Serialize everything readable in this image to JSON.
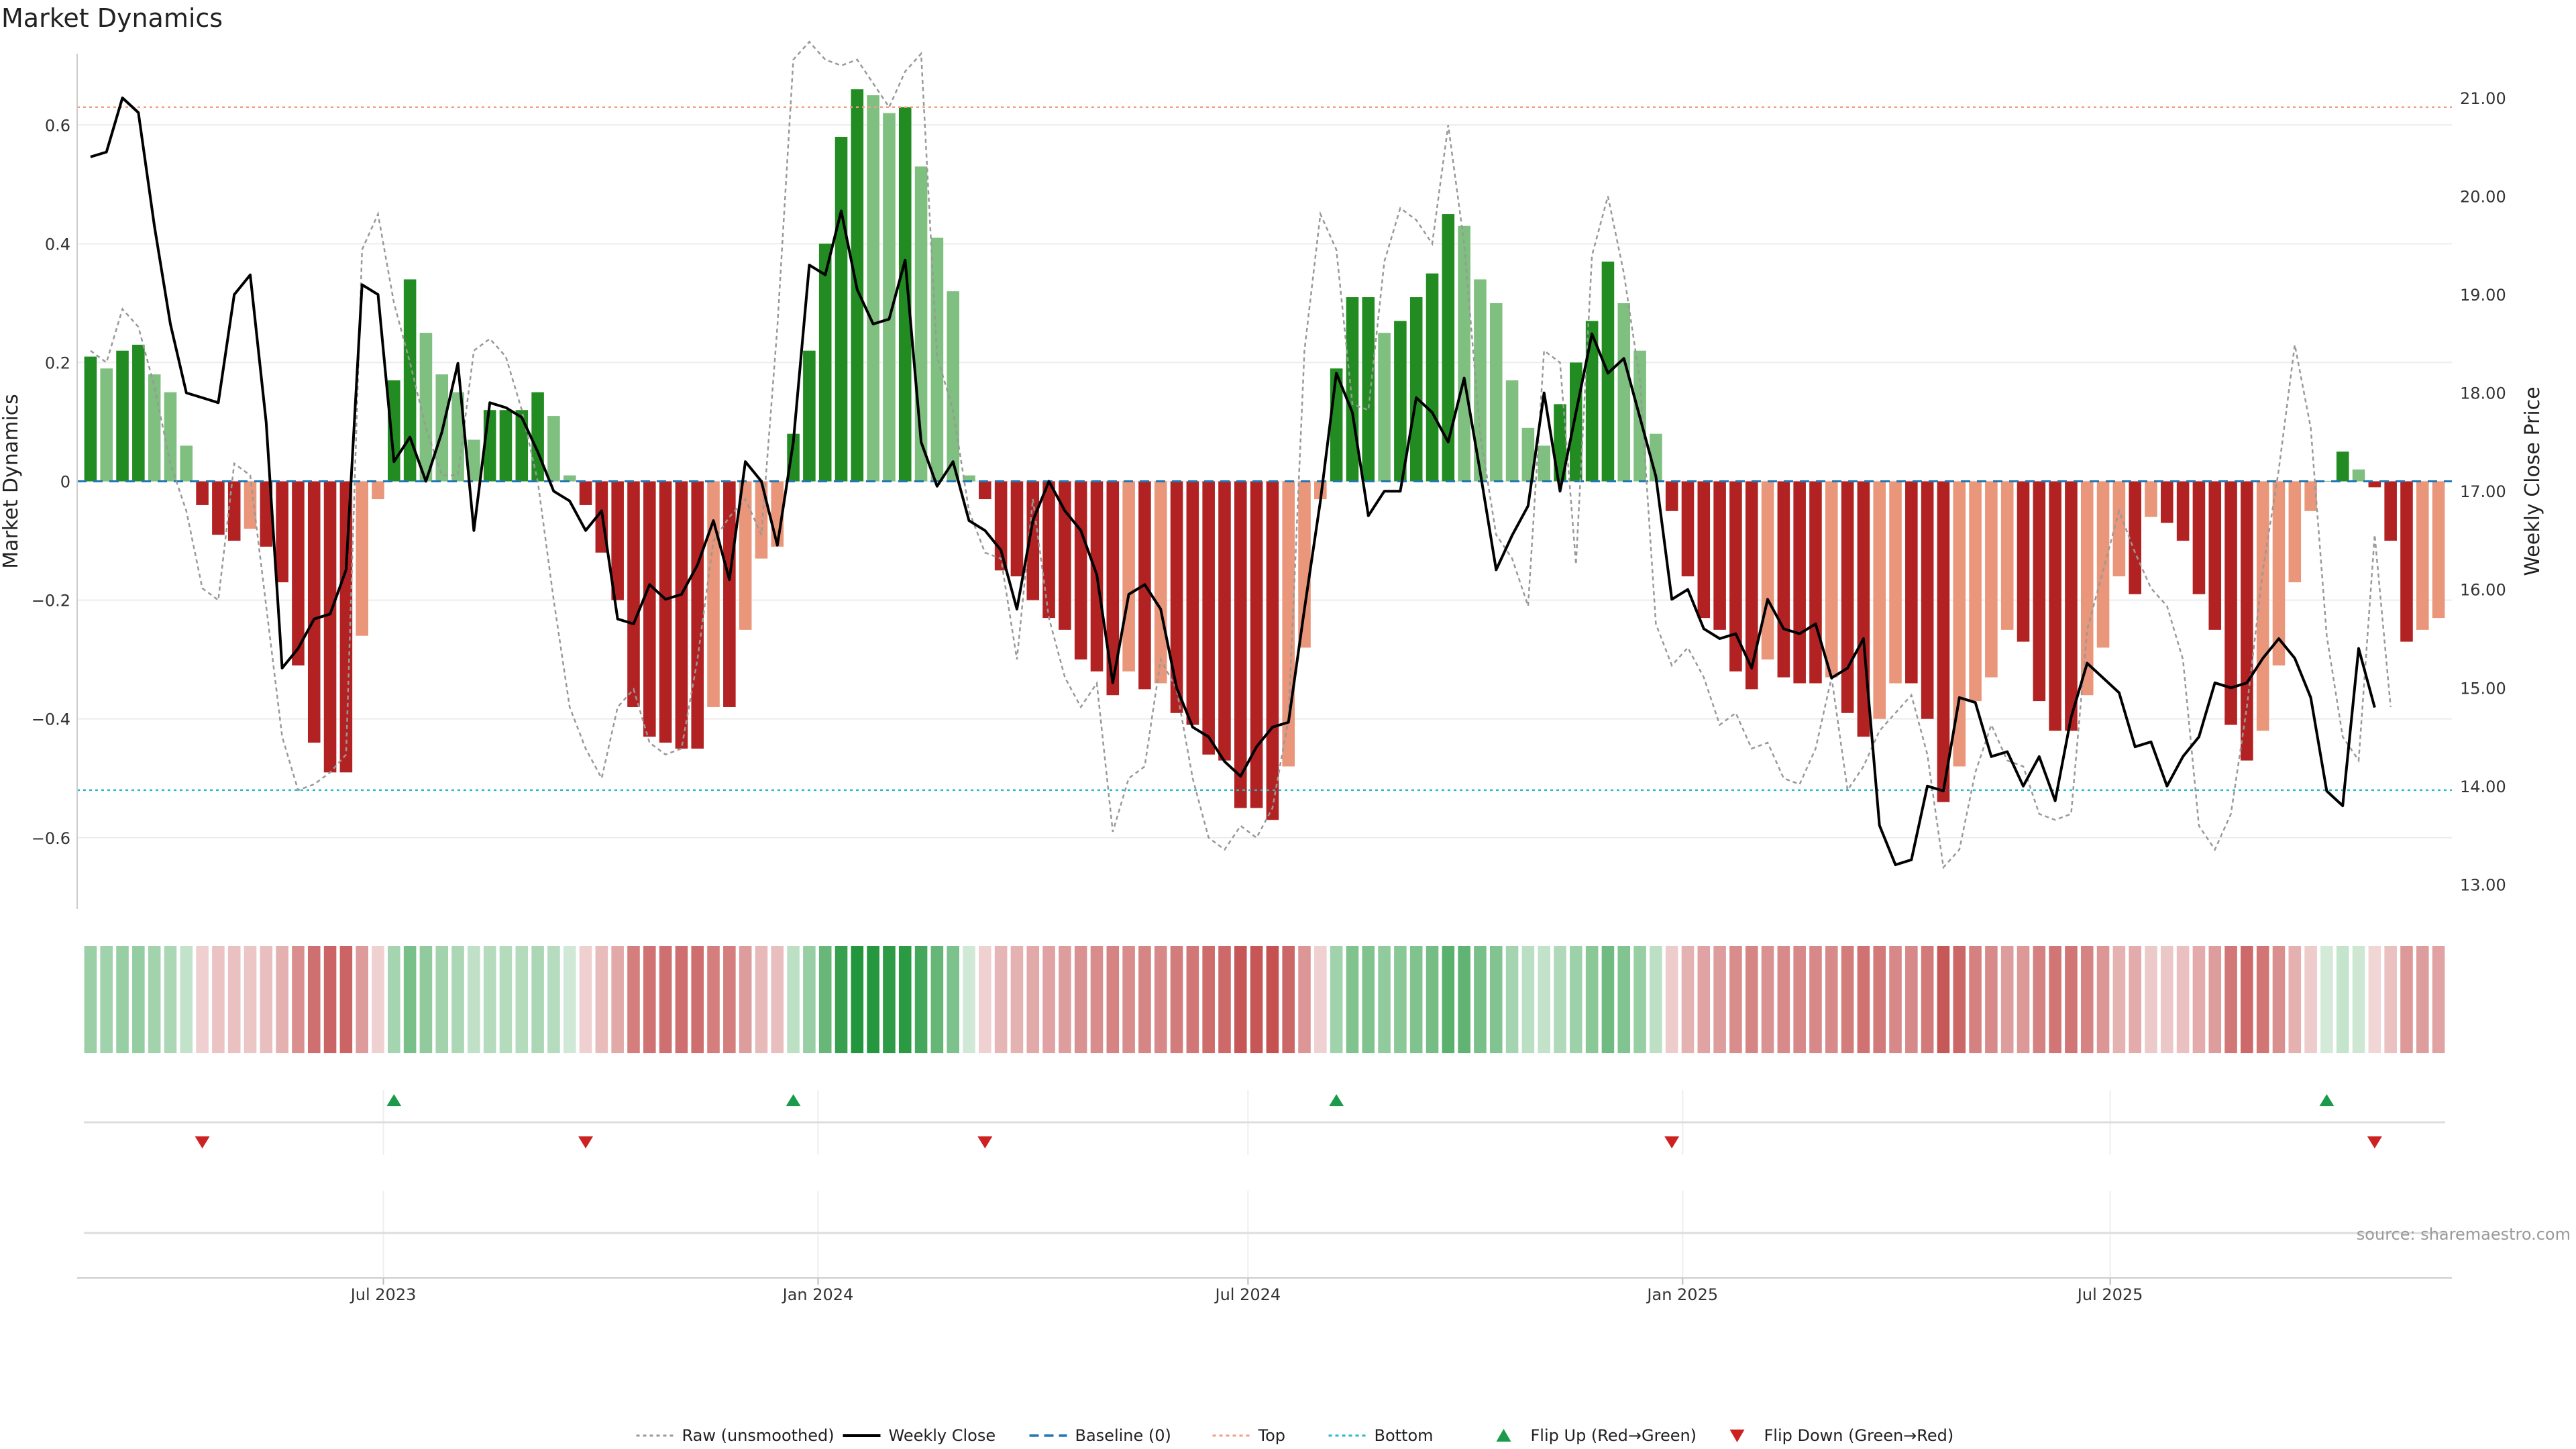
{
  "chart_data": {
    "type": "bar",
    "title": "Market Dynamics",
    "ylabel": "Market Dynamics",
    "y2label": "Weekly Close Price",
    "ylim": [
      -0.72,
      0.72
    ],
    "y2lim": [
      12.75,
      21.45
    ],
    "yticks": [
      -0.6,
      -0.4,
      -0.2,
      0,
      0.2,
      0.4,
      0.6
    ],
    "y2ticks": [
      13.0,
      14.0,
      15.0,
      16.0,
      17.0,
      18.0,
      19.0,
      20.0,
      21.0
    ],
    "grid": true,
    "x_range": [
      "2023-02-27",
      "2025-11-17"
    ],
    "x_ticks": [
      {
        "label": "Jul 2023",
        "date": "2023-07-01"
      },
      {
        "label": "Jan 2024",
        "date": "2024-01-01"
      },
      {
        "label": "Jul 2024",
        "date": "2024-07-01"
      },
      {
        "label": "Jan 2025",
        "date": "2025-01-01"
      },
      {
        "label": "Jul 2025",
        "date": "2025-07-01"
      }
    ],
    "top_level": 0.63,
    "bottom_level": -0.52,
    "baseline": 0,
    "series": [
      {
        "name": "Market Dynamics",
        "type": "bar",
        "values": [
          0.21,
          0.19,
          0.22,
          0.23,
          0.18,
          0.15,
          0.06,
          -0.04,
          -0.09,
          -0.1,
          -0.08,
          -0.11,
          -0.17,
          -0.31,
          -0.44,
          -0.49,
          -0.49,
          -0.26,
          -0.03,
          0.17,
          0.34,
          0.25,
          0.18,
          0.15,
          0.07,
          0.12,
          0.12,
          0.12,
          0.15,
          0.11,
          0.01,
          -0.04,
          -0.12,
          -0.2,
          -0.38,
          -0.43,
          -0.44,
          -0.45,
          -0.45,
          -0.38,
          -0.38,
          -0.25,
          -0.13,
          -0.11,
          0.08,
          0.22,
          0.4,
          0.58,
          0.66,
          0.65,
          0.62,
          0.63,
          0.53,
          0.41,
          0.32,
          0.01,
          -0.03,
          -0.15,
          -0.16,
          -0.2,
          -0.23,
          -0.25,
          -0.3,
          -0.32,
          -0.36,
          -0.32,
          -0.35,
          -0.34,
          -0.39,
          -0.41,
          -0.46,
          -0.47,
          -0.55,
          -0.55,
          -0.57,
          -0.48,
          -0.28,
          -0.03,
          0.19,
          0.31,
          0.31,
          0.25,
          0.27,
          0.31,
          0.35,
          0.45,
          0.43,
          0.34,
          0.3,
          0.17,
          0.09,
          0.06,
          0.13,
          0.2,
          0.27,
          0.37,
          0.3,
          0.22,
          0.08,
          -0.05,
          -0.16,
          -0.23,
          -0.25,
          -0.32,
          -0.35,
          -0.3,
          -0.33,
          -0.34,
          -0.34,
          -0.33,
          -0.39,
          -0.43,
          -0.4,
          -0.34,
          -0.34,
          -0.4,
          -0.54,
          -0.48,
          -0.37,
          -0.33,
          -0.25,
          -0.27,
          -0.37,
          -0.42,
          -0.42,
          -0.36,
          -0.28,
          -0.16,
          -0.19,
          -0.06,
          -0.07,
          -0.1,
          -0.19,
          -0.25,
          -0.41,
          -0.47,
          -0.42,
          -0.31,
          -0.17,
          -0.05,
          0.0,
          0.05,
          0.02,
          -0.01,
          -0.1,
          -0.27,
          -0.25,
          -0.23
        ]
      },
      {
        "name": "Raw (unsmoothed)",
        "type": "line",
        "values": [
          0.22,
          0.2,
          0.29,
          0.26,
          0.16,
          0.03,
          -0.05,
          -0.18,
          -0.2,
          0.03,
          0.01,
          -0.21,
          -0.43,
          -0.52,
          -0.51,
          -0.49,
          -0.46,
          0.39,
          0.45,
          0.3,
          0.2,
          0.09,
          0.01,
          0.01,
          0.22,
          0.24,
          0.21,
          0.12,
          0.0,
          -0.2,
          -0.38,
          -0.45,
          -0.5,
          -0.38,
          -0.35,
          -0.44,
          -0.46,
          -0.45,
          -0.3,
          -0.1,
          -0.06,
          -0.03,
          -0.09,
          0.26,
          0.71,
          0.74,
          0.71,
          0.7,
          0.71,
          0.67,
          0.63,
          0.69,
          0.72,
          0.21,
          0.12,
          -0.05,
          -0.12,
          -0.13,
          -0.3,
          -0.03,
          -0.23,
          -0.33,
          -0.38,
          -0.34,
          -0.59,
          -0.5,
          -0.48,
          -0.3,
          -0.35,
          -0.5,
          -0.6,
          -0.62,
          -0.58,
          -0.6,
          -0.55,
          -0.4,
          0.22,
          0.45,
          0.39,
          0.13,
          0.12,
          0.37,
          0.46,
          0.44,
          0.4,
          0.6,
          0.4,
          0.08,
          -0.09,
          -0.13,
          -0.21,
          0.22,
          0.2,
          -0.14,
          0.38,
          0.48,
          0.35,
          0.17,
          -0.24,
          -0.31,
          -0.28,
          -0.33,
          -0.41,
          -0.39,
          -0.45,
          -0.44,
          -0.5,
          -0.51,
          -0.45,
          -0.33,
          -0.52,
          -0.48,
          -0.42,
          -0.39,
          -0.36,
          -0.46,
          -0.65,
          -0.62,
          -0.49,
          -0.41,
          -0.47,
          -0.48,
          -0.56,
          -0.57,
          -0.56,
          -0.25,
          -0.15,
          -0.05,
          -0.12,
          -0.18,
          -0.21,
          -0.3,
          -0.58,
          -0.62,
          -0.56,
          -0.38,
          -0.15,
          0.02,
          0.23,
          0.09,
          -0.26,
          -0.43,
          -0.47,
          -0.09,
          -0.38
        ]
      },
      {
        "name": "Weekly Close",
        "type": "line",
        "axis": "right",
        "values": [
          20.4,
          20.45,
          21.0,
          20.85,
          19.7,
          18.7,
          18.0,
          17.95,
          17.9,
          19.0,
          19.2,
          17.7,
          15.2,
          15.4,
          15.7,
          15.75,
          16.2,
          19.1,
          19.0,
          17.3,
          17.55,
          17.1,
          17.6,
          18.3,
          16.6,
          17.9,
          17.85,
          17.75,
          17.4,
          17.0,
          16.9,
          16.6,
          16.8,
          15.7,
          15.65,
          16.05,
          15.9,
          15.95,
          16.25,
          16.7,
          16.1,
          17.3,
          17.1,
          16.45,
          17.5,
          19.3,
          19.2,
          19.85,
          19.05,
          18.7,
          18.75,
          19.35,
          17.5,
          17.05,
          17.3,
          16.7,
          16.6,
          16.4,
          15.8,
          16.7,
          17.1,
          16.8,
          16.6,
          16.15,
          15.05,
          15.95,
          16.05,
          15.8,
          15.0,
          14.6,
          14.5,
          14.25,
          14.1,
          14.4,
          14.6,
          14.65,
          15.8,
          16.9,
          18.2,
          17.8,
          16.75,
          17.0,
          17.0,
          17.95,
          17.8,
          17.5,
          18.15,
          17.2,
          16.2,
          16.55,
          16.85,
          18.0,
          17.0,
          17.8,
          18.6,
          18.2,
          18.35,
          17.75,
          17.15,
          15.9,
          16.0,
          15.6,
          15.5,
          15.55,
          15.2,
          15.9,
          15.6,
          15.55,
          15.65,
          15.1,
          15.2,
          15.5,
          13.6,
          13.2,
          13.25,
          14.0,
          13.95,
          14.9,
          14.85,
          14.3,
          14.35,
          14.0,
          14.3,
          13.85,
          14.7,
          15.25,
          15.1,
          14.95,
          14.4,
          14.45,
          14.0,
          14.3,
          14.5,
          15.05,
          15.0,
          15.05,
          15.3,
          15.5,
          15.3,
          14.9,
          13.95,
          13.8,
          15.4,
          14.8
        ]
      }
    ],
    "strip": {
      "values": [
        0.21,
        0.19,
        0.22,
        0.23,
        0.18,
        0.15,
        0.06,
        -0.04,
        -0.09,
        -0.1,
        -0.08,
        -0.11,
        -0.17,
        -0.31,
        -0.44,
        -0.49,
        -0.49,
        -0.26,
        -0.03,
        0.17,
        0.34,
        0.25,
        0.18,
        0.15,
        0.07,
        0.12,
        0.12,
        0.12,
        0.15,
        0.11,
        0.01,
        -0.04,
        -0.12,
        -0.2,
        -0.38,
        -0.43,
        -0.44,
        -0.45,
        -0.45,
        -0.38,
        -0.38,
        -0.25,
        -0.13,
        -0.11,
        0.08,
        0.22,
        0.4,
        0.58,
        0.66,
        0.65,
        0.62,
        0.63,
        0.53,
        0.41,
        0.32,
        0.01,
        -0.03,
        -0.15,
        -0.16,
        -0.2,
        -0.23,
        -0.25,
        -0.3,
        -0.32,
        -0.36,
        -0.32,
        -0.35,
        -0.34,
        -0.39,
        -0.41,
        -0.46,
        -0.47,
        -0.55,
        -0.55,
        -0.57,
        -0.48,
        -0.28,
        -0.03,
        0.19,
        0.31,
        0.31,
        0.25,
        0.27,
        0.31,
        0.35,
        0.45,
        0.43,
        0.34,
        0.3,
        0.17,
        0.09,
        0.06,
        0.13,
        0.2,
        0.27,
        0.37,
        0.3,
        0.22,
        0.08,
        -0.05,
        -0.16,
        -0.23,
        -0.25,
        -0.32,
        -0.35,
        -0.3,
        -0.33,
        -0.34,
        -0.34,
        -0.33,
        -0.39,
        -0.43,
        -0.4,
        -0.34,
        -0.34,
        -0.4,
        -0.54,
        -0.48,
        -0.37,
        -0.33,
        -0.25,
        -0.27,
        -0.37,
        -0.42,
        -0.42,
        -0.36,
        -0.28,
        -0.16,
        -0.19,
        -0.06,
        -0.07,
        -0.1,
        -0.19,
        -0.25,
        -0.41,
        -0.47,
        -0.42,
        -0.31,
        -0.17,
        -0.05,
        0.0,
        0.05,
        0.02,
        -0.01,
        -0.1,
        -0.27,
        -0.25,
        -0.23
      ]
    },
    "flip_up_indices": [
      19,
      44,
      78,
      140
    ],
    "flip_down_indices": [
      7,
      31,
      56,
      99,
      143
    ],
    "source": "source: sharemaestro.com",
    "legend": [
      {
        "label": "Raw (unsmoothed)",
        "kind": "dotted-line",
        "color": "#999999"
      },
      {
        "label": "Weekly Close",
        "kind": "line",
        "color": "#000000"
      },
      {
        "label": "Baseline (0)",
        "kind": "dashed-line",
        "color": "#1f77b4"
      },
      {
        "label": "Top",
        "kind": "dotted-line",
        "color": "#f0a080"
      },
      {
        "label": "Bottom",
        "kind": "dotted-line",
        "color": "#28b8c8"
      },
      {
        "label": "Flip Up (Red→Green)",
        "kind": "triangle-up",
        "color": "#1a9a4a"
      },
      {
        "label": "Flip Down (Green→Red)",
        "kind": "triangle-down",
        "color": "#cc2222"
      }
    ],
    "colors": {
      "green_strong": "#228b22",
      "green_light": "#7fbf7f",
      "red_strong": "#b22222",
      "red_light": "#e9967a",
      "raw": "#999999",
      "close": "#000000",
      "baseline": "#1f77b4",
      "top": "#f0a080",
      "bottom": "#28b8c8",
      "flip_up": "#1a9a4a",
      "flip_down": "#cc2222"
    }
  }
}
